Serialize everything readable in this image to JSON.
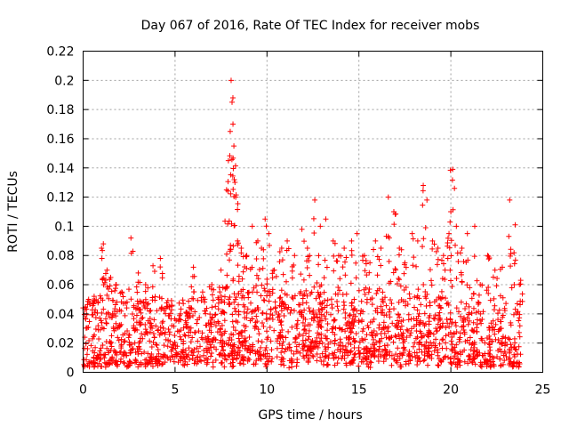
{
  "chart_data": {
    "type": "scatter",
    "title": "Day 067 of 2016, Rate Of TEC Index for receiver mobs",
    "xlabel": "GPS time / hours",
    "ylabel": "ROTI / TECUs",
    "xlim": [
      0,
      25
    ],
    "ylim": [
      0,
      0.22
    ],
    "xticks": [
      "0",
      "5",
      "10",
      "15",
      "20",
      "25"
    ],
    "yticks": [
      "0",
      "0.02",
      "0.04",
      "0.06",
      "0.08",
      "0.1",
      "0.12",
      "0.14",
      "0.16",
      "0.18",
      "0.2",
      "0.22"
    ],
    "grid": true,
    "marker": "+",
    "color": "#ff0000",
    "series": [
      {
        "x": [
          0.1,
          0.3,
          0.6,
          1.0,
          1.1,
          1.3,
          1.5,
          1.8,
          2.1,
          2.6,
          3.0,
          3.4,
          3.8,
          4.2,
          4.6,
          5.2,
          5.7,
          6.0,
          6.5,
          7.0,
          7.5,
          7.8,
          7.9,
          8.0,
          8.05,
          8.1,
          8.15,
          8.2,
          8.3,
          8.4,
          8.6,
          8.9,
          9.2,
          9.5,
          9.7,
          9.9,
          10.1,
          10.4,
          10.8,
          11.1,
          11.5,
          11.9,
          12.2,
          12.6,
          12.9,
          13.2,
          13.6,
          13.9,
          14.2,
          14.6,
          14.9,
          15.3,
          15.6,
          15.9,
          16.2,
          16.6,
          16.9,
          17.2,
          17.5,
          17.9,
          18.2,
          18.5,
          18.7,
          19.0,
          19.3,
          19.6,
          19.9,
          20.0,
          20.1,
          20.3,
          20.6,
          20.9,
          21.3,
          21.6,
          22.0,
          22.4,
          22.8,
          23.2,
          23.5,
          23.8
        ],
        "y": [
          0.043,
          0.05,
          0.052,
          0.085,
          0.088,
          0.07,
          0.065,
          0.06,
          0.055,
          0.092,
          0.068,
          0.06,
          0.073,
          0.078,
          0.045,
          0.035,
          0.04,
          0.072,
          0.055,
          0.06,
          0.07,
          0.125,
          0.145,
          0.165,
          0.2,
          0.185,
          0.17,
          0.155,
          0.12,
          0.09,
          0.085,
          0.08,
          0.1,
          0.09,
          0.085,
          0.105,
          0.095,
          0.07,
          0.085,
          0.09,
          0.08,
          0.098,
          0.085,
          0.118,
          0.1,
          0.105,
          0.09,
          0.08,
          0.085,
          0.09,
          0.095,
          0.08,
          0.075,
          0.09,
          0.085,
          0.12,
          0.11,
          0.085,
          0.075,
          0.095,
          0.09,
          0.128,
          0.118,
          0.09,
          0.085,
          0.08,
          0.095,
          0.11,
          0.139,
          0.1,
          0.085,
          0.095,
          0.1,
          0.06,
          0.08,
          0.07,
          0.072,
          0.118,
          0.101,
          0.063
        ],
        "band_min": 0.003,
        "band_typical_max": 0.045
      }
    ]
  }
}
